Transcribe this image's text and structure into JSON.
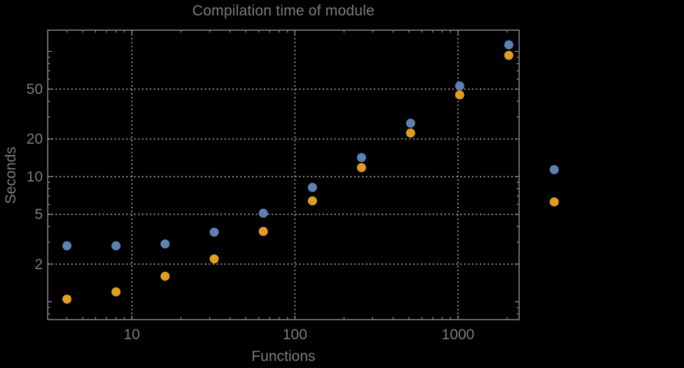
{
  "page": {
    "background": "#000000"
  },
  "chart_data": {
    "type": "scatter",
    "title": "Compilation time of module",
    "xlabel": "Functions",
    "ylabel": "Seconds",
    "x_scale": "log",
    "y_scale": "log",
    "xlim": [
      3.05,
      2370
    ],
    "ylim": [
      0.72,
      148
    ],
    "grid": {
      "style": "dotted",
      "x_at": [
        10,
        100,
        1000
      ],
      "y_at": [
        2,
        5,
        10,
        20,
        50
      ]
    },
    "x": [
      4,
      8,
      16,
      32,
      64,
      128,
      256,
      512,
      1024,
      2048
    ],
    "series": [
      {
        "name": "blue-series",
        "color": "#5e81b5",
        "values": [
          2.8,
          2.8,
          2.9,
          3.6,
          5.1,
          8.2,
          14.2,
          26.7,
          53,
          113
        ]
      },
      {
        "name": "orange-series",
        "color": "#e19c24",
        "values": [
          1.05,
          1.2,
          1.6,
          2.2,
          3.65,
          6.4,
          11.8,
          22.3,
          45,
          93
        ]
      }
    ],
    "x_ticks_labeled": [
      "10",
      "100",
      "1000"
    ],
    "y_ticks_labeled": [
      "2",
      "5",
      "10",
      "20",
      "50"
    ],
    "y_ticks_unlabeled_major": [
      1,
      100
    ],
    "marker_radius": 6.5,
    "legend_position": "right-outside-middle",
    "legend_markers": [
      {
        "name": "blue-series-marker",
        "color": "#5e81b5"
      },
      {
        "name": "orange-series-marker",
        "color": "#e19c24"
      }
    ],
    "colors": {
      "background": "#000000",
      "frame": "#8a8a8a",
      "grid": "#8f8f8f",
      "text": "#7c7c7c"
    }
  }
}
